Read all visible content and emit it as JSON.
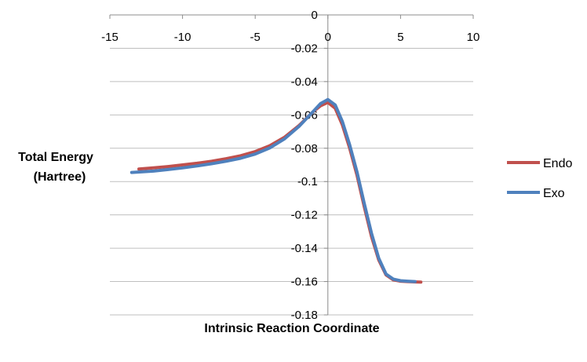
{
  "chart_data": {
    "type": "line",
    "title": "",
    "xlabel": "Intrinsic Reaction Coordinate",
    "ylabel_lines": [
      "Total Energy",
      "(Hartree)"
    ],
    "xlim": [
      -15,
      10
    ],
    "ylim": [
      -0.18,
      0
    ],
    "xticks": [
      -15,
      -10,
      -5,
      0,
      5,
      10
    ],
    "xtick_labels": [
      "-15",
      "-10",
      "-5",
      "0",
      "5",
      "10"
    ],
    "yticks": [
      0,
      -0.02,
      -0.04,
      -0.06,
      -0.08,
      -0.1,
      -0.12,
      -0.14,
      -0.16,
      -0.18
    ],
    "ytick_labels": [
      "0",
      "-0.02",
      "-0.04",
      "-0.06",
      "-0.08",
      "-0.1",
      "-0.12",
      "-0.14",
      "-0.16",
      "-0.18"
    ],
    "grid": "horizontal",
    "legend_position": "right",
    "series": [
      {
        "name": "Endo",
        "color": "#c0504d",
        "x": [
          -13,
          -12,
          -11,
          -10,
          -9,
          -8,
          -7,
          -6,
          -5,
          -4,
          -3,
          -2,
          -1,
          -0.5,
          0,
          0.5,
          1,
          1.5,
          2,
          2.5,
          3,
          3.5,
          4,
          4.5,
          5,
          5.5,
          6,
          6.4
        ],
        "y": [
          -0.0925,
          -0.0918,
          -0.091,
          -0.09,
          -0.089,
          -0.0878,
          -0.0863,
          -0.0845,
          -0.082,
          -0.0785,
          -0.0735,
          -0.0665,
          -0.058,
          -0.0545,
          -0.0525,
          -0.056,
          -0.066,
          -0.08,
          -0.096,
          -0.115,
          -0.133,
          -0.147,
          -0.156,
          -0.159,
          -0.1598,
          -0.16,
          -0.1602,
          -0.1603
        ]
      },
      {
        "name": "Exo",
        "color": "#4f81bd",
        "x": [
          -13.5,
          -12,
          -11,
          -10,
          -9,
          -8,
          -7,
          -6,
          -5,
          -4,
          -3,
          -2,
          -1,
          -0.5,
          0,
          0.5,
          1,
          1.5,
          2,
          2.5,
          3,
          3.5,
          4,
          4.5,
          5,
          5.5,
          6
        ],
        "y": [
          -0.0945,
          -0.0937,
          -0.0928,
          -0.0918,
          -0.0906,
          -0.0893,
          -0.0878,
          -0.086,
          -0.0835,
          -0.0798,
          -0.0745,
          -0.067,
          -0.0578,
          -0.0532,
          -0.0508,
          -0.054,
          -0.064,
          -0.078,
          -0.094,
          -0.113,
          -0.131,
          -0.146,
          -0.1555,
          -0.1585,
          -0.1595,
          -0.1598,
          -0.16
        ]
      }
    ]
  }
}
